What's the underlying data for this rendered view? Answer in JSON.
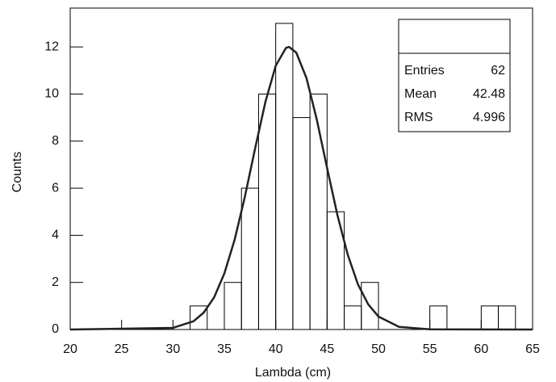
{
  "chart_data": {
    "type": "histogram",
    "xlabel": "Lambda (cm)",
    "ylabel": "Counts",
    "bins": [
      20,
      21.667,
      23.333,
      25,
      26.667,
      28.333,
      30,
      31.667,
      33.333,
      35,
      36.667,
      38.333,
      40,
      41.667,
      43.333,
      45,
      46.667,
      48.333,
      50,
      51.667,
      53.333,
      55,
      56.667,
      58.333,
      60,
      61.667,
      63.333,
      65
    ],
    "values": [
      0,
      0,
      0,
      0,
      0,
      0,
      0,
      1,
      0,
      2,
      6,
      10,
      13,
      9,
      10,
      5,
      1,
      2,
      0,
      0,
      0,
      1,
      0,
      0,
      1,
      1,
      0
    ],
    "color": "#000000",
    "fit": {
      "color": "#222222",
      "x": [
        20,
        30,
        32,
        33,
        34,
        35,
        36,
        37,
        38,
        39,
        40,
        41,
        41.3,
        42,
        43,
        44,
        45,
        46,
        47,
        48,
        49,
        50,
        52,
        55,
        65
      ],
      "values": [
        0,
        0.07,
        0.35,
        0.72,
        1.36,
        2.38,
        3.81,
        5.64,
        7.7,
        9.67,
        11.2,
        11.96,
        12,
        11.76,
        10.67,
        8.91,
        6.86,
        4.87,
        3.19,
        1.92,
        1.07,
        0.55,
        0.11,
        0.01,
        0
      ]
    },
    "xlim": [
      20,
      65
    ],
    "xticks": [
      20,
      25,
      30,
      35,
      40,
      45,
      50,
      55,
      60,
      65
    ],
    "ylim": [
      0,
      13.65
    ],
    "yticks": [
      0,
      2,
      4,
      6,
      8,
      10,
      12
    ],
    "stats": {
      "rows": [
        [
          "Entries",
          62
        ],
        [
          "Mean",
          42.48
        ],
        [
          "RMS",
          4.996
        ]
      ]
    }
  }
}
